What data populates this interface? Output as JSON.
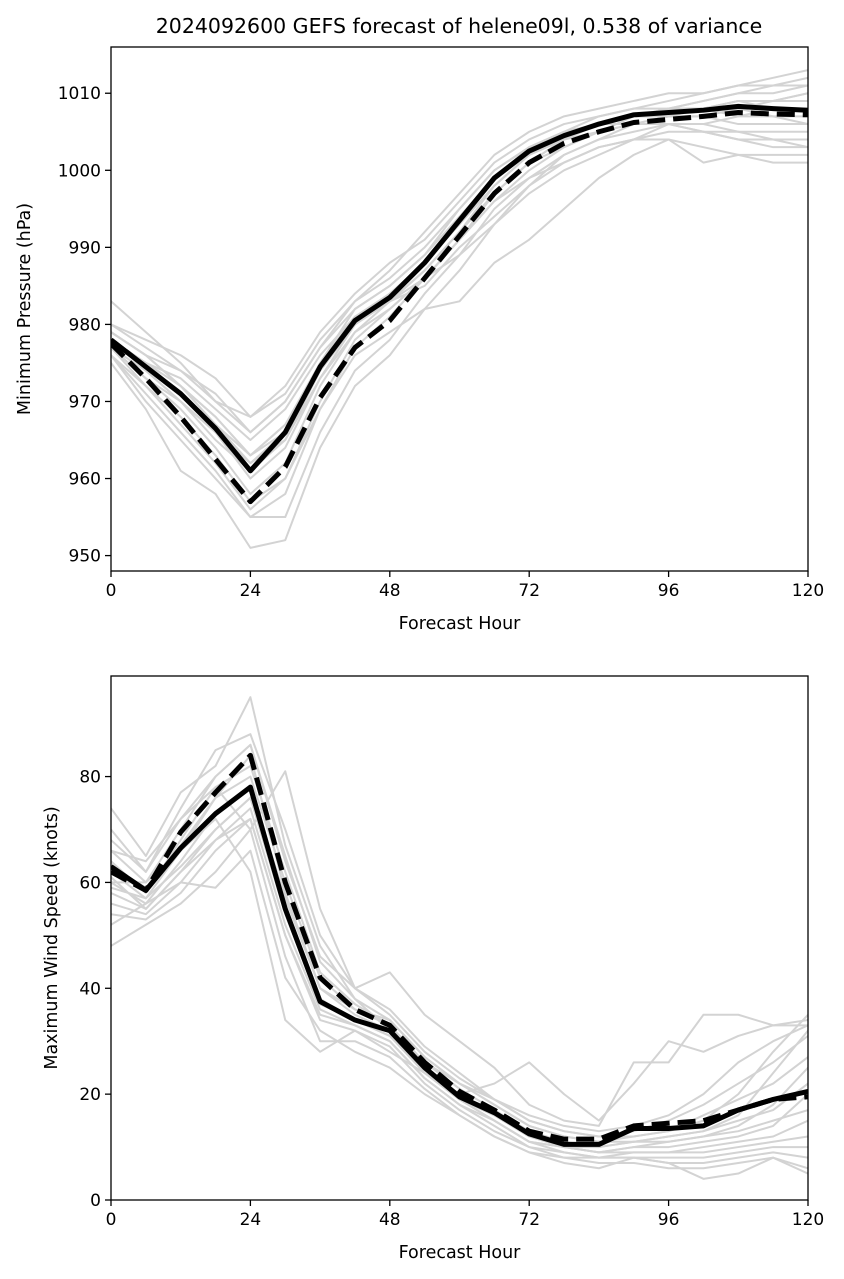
{
  "figure": {
    "title": "2024092600 GEFS forecast of helene09l, 0.538 of variance"
  },
  "colors": {
    "ensemble": "#d3d3d3",
    "mean": "#000000",
    "axes": "#000000",
    "background": "#ffffff"
  },
  "chart_data": [
    {
      "type": "line",
      "title": "2024092600 GEFS forecast of helene09l, 0.538 of variance",
      "xlabel": "Forecast Hour",
      "ylabel": "Minimum Pressure (hPa)",
      "xlim": [
        0,
        120
      ],
      "ylim": [
        948,
        1016
      ],
      "xticks": [
        0,
        24,
        48,
        72,
        96,
        120
      ],
      "yticks": [
        950,
        960,
        970,
        980,
        990,
        1000,
        1010
      ],
      "grid": false,
      "x": [
        0,
        6,
        12,
        18,
        24,
        30,
        36,
        42,
        48,
        54,
        60,
        66,
        72,
        78,
        84,
        90,
        96,
        102,
        108,
        114,
        120
      ],
      "series": [
        {
          "style": "solid",
          "values": [
            978,
            974.5,
            971,
            966.5,
            961,
            966,
            974.5,
            980.5,
            983.5,
            988,
            993.5,
            999,
            1002.5,
            1004.5,
            1006,
            1007.2,
            1007.5,
            1007.8,
            1008.3,
            1008,
            1007.8
          ]
        },
        {
          "style": "dashed",
          "values": [
            977.5,
            973,
            968,
            962.5,
            957,
            961.5,
            970.5,
            977,
            980.5,
            986,
            991.5,
            997,
            1001,
            1003.5,
            1005,
            1006.2,
            1006.6,
            1007,
            1007.5,
            1007.3,
            1007.2
          ]
        },
        {
          "style": "ensemble",
          "values": [
            983,
            979,
            975,
            970,
            966,
            970,
            977,
            983,
            987,
            992,
            997,
            1002,
            1005,
            1007,
            1008,
            1009,
            1010,
            1010,
            1011,
            1012,
            1013
          ]
        },
        {
          "style": "ensemble",
          "values": [
            980,
            977,
            974,
            970,
            968,
            972,
            979,
            984,
            988,
            991,
            996,
            1001,
            1004,
            1006,
            1007,
            1008,
            1009,
            1010,
            1011,
            1011,
            1012
          ]
        },
        {
          "style": "ensemble",
          "values": [
            979,
            976,
            972,
            968,
            963,
            966,
            975,
            982,
            985,
            989,
            995,
            1000,
            1003,
            1005,
            1007,
            1008,
            1008,
            1009,
            1010,
            1011,
            1011
          ]
        },
        {
          "style": "ensemble",
          "values": [
            977,
            973,
            969,
            964,
            958,
            962,
            972,
            979,
            983,
            987,
            992,
            998,
            1002,
            1004,
            1006,
            1007,
            1008,
            1009,
            1010,
            1010,
            1011
          ]
        },
        {
          "style": "ensemble",
          "values": [
            976,
            970,
            965,
            960,
            955,
            958,
            969,
            977,
            981,
            986,
            991,
            997,
            1001,
            1004,
            1005,
            1007,
            1008,
            1008,
            1009,
            1009,
            1010
          ]
        },
        {
          "style": "ensemble",
          "values": [
            975,
            969,
            961,
            958,
            951,
            952,
            964,
            972,
            976,
            982,
            987,
            993,
            998,
            1002,
            1004,
            1006,
            1007,
            1007,
            1008,
            1009,
            1009
          ]
        },
        {
          "style": "ensemble",
          "values": [
            978,
            975,
            973,
            969,
            965,
            969,
            976,
            981,
            984,
            988,
            993,
            999,
            1003,
            1005,
            1006,
            1007,
            1008,
            1008,
            1009,
            1008,
            1008
          ]
        },
        {
          "style": "ensemble",
          "values": [
            979,
            976,
            974,
            971,
            966,
            970,
            977,
            982,
            985,
            989,
            994,
            999,
            1002,
            1004,
            1006,
            1007,
            1007,
            1008,
            1008,
            1007,
            1007
          ]
        },
        {
          "style": "ensemble",
          "values": [
            977,
            972,
            967,
            962,
            956,
            960,
            970,
            978,
            982,
            986,
            991,
            996,
            1000,
            1003,
            1005,
            1006,
            1007,
            1007,
            1006,
            1006,
            1006
          ]
        },
        {
          "style": "ensemble",
          "values": [
            978,
            974,
            970,
            966,
            960,
            964,
            973,
            980,
            983,
            987,
            992,
            997,
            1001,
            1003,
            1005,
            1006,
            1006,
            1006,
            1005,
            1005,
            1005
          ]
        },
        {
          "style": "ensemble",
          "values": [
            976,
            971,
            966,
            961,
            955,
            955,
            966,
            974,
            978,
            984,
            989,
            995,
            999,
            1002,
            1004,
            1005,
            1006,
            1005,
            1005,
            1004,
            1004
          ]
        },
        {
          "style": "ensemble",
          "values": [
            980,
            978,
            976,
            973,
            968,
            971,
            978,
            983,
            986,
            990,
            995,
            1000,
            1003,
            1005,
            1006,
            1006,
            1006,
            1005,
            1004,
            1004,
            1003
          ]
        },
        {
          "style": "ensemble",
          "values": [
            977,
            973,
            970,
            965,
            961,
            965,
            974,
            980,
            983,
            985,
            990,
            994,
            998,
            1001,
            1003,
            1004,
            1005,
            1005,
            1004,
            1003,
            1003
          ]
        },
        {
          "style": "ensemble",
          "values": [
            978,
            975,
            972,
            968,
            963,
            967,
            975,
            981,
            983,
            986,
            989,
            993,
            997,
            1000,
            1002,
            1004,
            1004,
            1003,
            1002,
            1002,
            1002
          ]
        },
        {
          "style": "ensemble",
          "values": [
            976,
            972,
            968,
            963,
            957,
            960,
            969,
            976,
            979,
            982,
            983,
            988,
            991,
            995,
            999,
            1002,
            1004,
            1001,
            1002,
            1001,
            1001
          ]
        },
        {
          "style": "ensemble",
          "values": [
            979,
            976,
            972,
            967,
            962,
            965,
            973,
            979,
            982,
            986,
            991,
            996,
            999,
            1001,
            1003,
            1004,
            1006,
            1006,
            1007,
            1008,
            1008
          ]
        },
        {
          "style": "ensemble",
          "values": [
            978,
            975,
            971,
            967,
            963,
            967,
            974,
            980,
            983,
            987,
            992,
            997,
            1001,
            1004,
            1006,
            1007,
            1007,
            1008,
            1009,
            1009,
            1010
          ]
        },
        {
          "style": "ensemble",
          "values": [
            977,
            974,
            970,
            966,
            962,
            966,
            974,
            980,
            984,
            988,
            993,
            998,
            1002,
            1004,
            1006,
            1007,
            1008,
            1008,
            1007,
            1007,
            1006
          ]
        }
      ]
    },
    {
      "type": "line",
      "xlabel": "Forecast Hour",
      "ylabel": "Maximum Wind Speed (knots)",
      "xlim": [
        0,
        120
      ],
      "ylim": [
        0,
        99
      ],
      "xticks": [
        0,
        24,
        48,
        72,
        96,
        120
      ],
      "yticks": [
        0,
        20,
        40,
        60,
        80
      ],
      "grid": false,
      "x": [
        0,
        6,
        12,
        18,
        24,
        30,
        36,
        42,
        48,
        54,
        60,
        66,
        72,
        78,
        84,
        90,
        96,
        102,
        108,
        114,
        120
      ],
      "series": [
        {
          "style": "solid",
          "values": [
            63,
            58.5,
            66.5,
            73,
            78,
            55,
            37.5,
            34,
            32,
            25,
            19.5,
            16.5,
            12.5,
            10.5,
            10.5,
            13.5,
            13.5,
            14,
            17,
            19,
            20.5
          ]
        },
        {
          "style": "dashed",
          "values": [
            62,
            58.5,
            69.5,
            77,
            84,
            60,
            42,
            36,
            33,
            26,
            20.5,
            17,
            13,
            11.5,
            11.5,
            14,
            14.5,
            15,
            17,
            19,
            19.5
          ]
        },
        {
          "style": "ensemble",
          "values": [
            74,
            65,
            77,
            82,
            95,
            67,
            48,
            38,
            32,
            26,
            22,
            19,
            16,
            14,
            13,
            14,
            16,
            20,
            26,
            30,
            33
          ]
        },
        {
          "style": "ensemble",
          "values": [
            70,
            62,
            74,
            85,
            88,
            70,
            50,
            40,
            35,
            28,
            23,
            19,
            15,
            13,
            12,
            12,
            13,
            15,
            20,
            28,
            35
          ]
        },
        {
          "style": "ensemble",
          "values": [
            66,
            60,
            70,
            80,
            86,
            65,
            45,
            38,
            34,
            27,
            22,
            18,
            14,
            12,
            11,
            11,
            12,
            13,
            16,
            24,
            32
          ]
        },
        {
          "style": "ensemble",
          "values": [
            64,
            58,
            68,
            78,
            82,
            62,
            43,
            37,
            33,
            26,
            21,
            17,
            13,
            11,
            10,
            11,
            11,
            12,
            14,
            18,
            25
          ]
        },
        {
          "style": "ensemble",
          "values": [
            62,
            57,
            66,
            76,
            80,
            60,
            42,
            36,
            33,
            25,
            20,
            16,
            12,
            10,
            9,
            10,
            10,
            11,
            12,
            14,
            20
          ]
        },
        {
          "style": "ensemble",
          "values": [
            60,
            56,
            64,
            73,
            78,
            57,
            40,
            35,
            32,
            24,
            19,
            15,
            11,
            10,
            9,
            9,
            9,
            10,
            11,
            12,
            15
          ]
        },
        {
          "style": "ensemble",
          "values": [
            58,
            55,
            62,
            70,
            76,
            55,
            38,
            34,
            31,
            24,
            19,
            15,
            11,
            9,
            8,
            9,
            9,
            9,
            10,
            11,
            12
          ]
        },
        {
          "style": "ensemble",
          "values": [
            56,
            54,
            60,
            68,
            74,
            52,
            36,
            33,
            30,
            23,
            18,
            14,
            10,
            9,
            8,
            8,
            8,
            8,
            9,
            10,
            10
          ]
        },
        {
          "style": "ensemble",
          "values": [
            54,
            53,
            58,
            66,
            72,
            50,
            34,
            32,
            29,
            22,
            17,
            13,
            10,
            8,
            8,
            8,
            7,
            7,
            8,
            9,
            8
          ]
        },
        {
          "style": "ensemble",
          "values": [
            48,
            52,
            56,
            62,
            70,
            46,
            30,
            30,
            27,
            21,
            16,
            12,
            9,
            8,
            7,
            7,
            6,
            6,
            7,
            8,
            6
          ]
        },
        {
          "style": "ensemble",
          "values": [
            52,
            56,
            60,
            59,
            66,
            42,
            32,
            28,
            25,
            20,
            16,
            12,
            9,
            7,
            6,
            8,
            7,
            4,
            5,
            8,
            5
          ]
        },
        {
          "style": "ensemble",
          "values": [
            66,
            64,
            72,
            78,
            70,
            81,
            55,
            40,
            43,
            35,
            30,
            25,
            18,
            15,
            14,
            26,
            26,
            35,
            35,
            33,
            33
          ]
        },
        {
          "style": "ensemble",
          "values": [
            60,
            60,
            66,
            72,
            62,
            34,
            28,
            32,
            28,
            24,
            20,
            22,
            26,
            20,
            15,
            22,
            30,
            28,
            31,
            33,
            34
          ]
        },
        {
          "style": "ensemble",
          "values": [
            68,
            62,
            72,
            80,
            86,
            64,
            46,
            40,
            36,
            29,
            24,
            19,
            15,
            13,
            12,
            13,
            15,
            18,
            22,
            26,
            31
          ]
        },
        {
          "style": "ensemble",
          "values": [
            63,
            59,
            67,
            76,
            84,
            58,
            40,
            36,
            34,
            27,
            22,
            18,
            14,
            12,
            11,
            12,
            13,
            16,
            19,
            22,
            27
          ]
        },
        {
          "style": "ensemble",
          "values": [
            59,
            57,
            63,
            70,
            76,
            54,
            37,
            34,
            31,
            25,
            19,
            16,
            12,
            10,
            10,
            11,
            12,
            13,
            15,
            17,
            22
          ]
        },
        {
          "style": "ensemble",
          "values": [
            61,
            55,
            62,
            68,
            72,
            50,
            35,
            33,
            30,
            23,
            18,
            15,
            11,
            10,
            9,
            10,
            11,
            12,
            13,
            15,
            17
          ]
        }
      ]
    }
  ]
}
